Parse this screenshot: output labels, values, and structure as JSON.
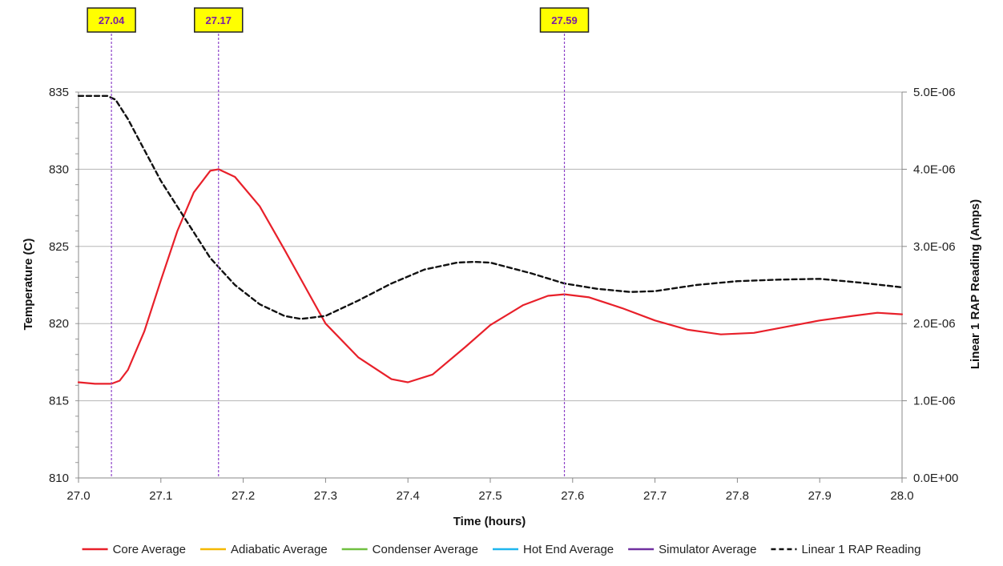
{
  "chart_data": {
    "type": "line",
    "xlabel": "Time (hours)",
    "ylabel": "Temperature (C)",
    "y2label": "Linear 1 RAP Reading (Amps)",
    "xlim": [
      27.0,
      28.0
    ],
    "ylim": [
      810,
      835
    ],
    "y2lim": [
      0,
      5e-06
    ],
    "grid": true,
    "legend_position": "bottom",
    "x_ticks": [
      "27.0",
      "27.1",
      "27.2",
      "27.3",
      "27.4",
      "27.5",
      "27.6",
      "27.7",
      "27.8",
      "27.9",
      "28.0"
    ],
    "y_ticks": [
      "810",
      "815",
      "820",
      "825",
      "830",
      "835"
    ],
    "y2_ticks": [
      "0.0E+00",
      "1.0E-06",
      "2.0E-06",
      "3.0E-06",
      "4.0E-06",
      "5.0E-06"
    ],
    "markers": [
      {
        "x": 27.04,
        "label": "27.04"
      },
      {
        "x": 27.17,
        "label": "27.17"
      },
      {
        "x": 27.59,
        "label": "27.59"
      }
    ],
    "series": [
      {
        "name": "Core Average",
        "axis": "left",
        "color": "#e8202a",
        "style": "solid",
        "x": [
          27.0,
          27.02,
          27.04,
          27.05,
          27.06,
          27.08,
          27.1,
          27.12,
          27.14,
          27.16,
          27.17,
          27.19,
          27.22,
          27.25,
          27.3,
          27.34,
          27.38,
          27.4,
          27.43,
          27.47,
          27.5,
          27.54,
          27.57,
          27.59,
          27.62,
          27.66,
          27.7,
          27.74,
          27.78,
          27.82,
          27.86,
          27.9,
          27.94,
          27.97,
          28.0
        ],
        "y": [
          816.2,
          816.1,
          816.1,
          816.3,
          817.0,
          819.5,
          822.8,
          826.0,
          828.5,
          829.9,
          830.0,
          829.5,
          827.6,
          824.8,
          820.0,
          817.8,
          816.4,
          816.2,
          816.7,
          818.5,
          819.9,
          821.2,
          821.8,
          821.9,
          821.7,
          821.0,
          820.2,
          819.6,
          819.3,
          819.4,
          819.8,
          820.2,
          820.5,
          820.7,
          820.6
        ]
      },
      {
        "name": "Adiabatic Average",
        "axis": "left",
        "color": "#f5b800",
        "style": "solid",
        "x": [],
        "y": []
      },
      {
        "name": "Condenser Average",
        "axis": "left",
        "color": "#70c040",
        "style": "solid",
        "x": [],
        "y": []
      },
      {
        "name": "Hot End Average",
        "axis": "left",
        "color": "#1fb6ee",
        "style": "solid",
        "x": [],
        "y": []
      },
      {
        "name": "Simulator Average",
        "axis": "left",
        "color": "#7030a0",
        "style": "solid",
        "x": [],
        "y": []
      },
      {
        "name": "Linear 1 RAP Reading",
        "axis": "right",
        "color": "#111111",
        "style": "dashed",
        "x": [
          27.0,
          27.02,
          27.035,
          27.045,
          27.06,
          27.08,
          27.1,
          27.13,
          27.16,
          27.19,
          27.22,
          27.25,
          27.27,
          27.3,
          27.34,
          27.38,
          27.42,
          27.46,
          27.48,
          27.5,
          27.55,
          27.59,
          27.63,
          27.67,
          27.7,
          27.75,
          27.8,
          27.85,
          27.9,
          27.95,
          28.0
        ],
        "y": [
          4.95e-06,
          4.95e-06,
          4.95e-06,
          4.9e-06,
          4.65e-06,
          4.25e-06,
          3.85e-06,
          3.35e-06,
          2.85e-06,
          2.5e-06,
          2.25e-06,
          2.1e-06,
          2.06e-06,
          2.1e-06,
          2.3e-06,
          2.52e-06,
          2.7e-06,
          2.79e-06,
          2.8e-06,
          2.79e-06,
          2.65e-06,
          2.52e-06,
          2.45e-06,
          2.41e-06,
          2.42e-06,
          2.5e-06,
          2.55e-06,
          2.57e-06,
          2.58e-06,
          2.53e-06,
          2.47e-06
        ]
      }
    ]
  }
}
